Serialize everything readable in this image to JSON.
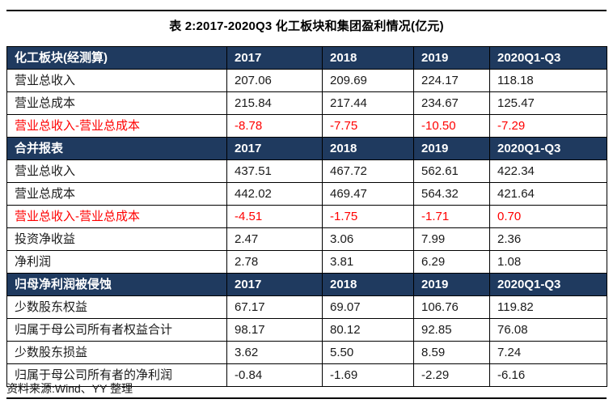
{
  "page": {
    "title": "表 2:2017-2020Q3 化工板块和集团盈利情况(亿元)",
    "source": "资料来源:Wind、YY 整理"
  },
  "colors": {
    "section_header_bg": "#1f3a5f",
    "section_header_text": "#ffffff",
    "negative_highlight": "#ff0000",
    "rule": "#000000"
  },
  "table": {
    "unit": "亿元",
    "sections": [
      {
        "header": [
          "化工板块(经测算)",
          "2017",
          "2018",
          "2019",
          "2020Q1-Q3"
        ],
        "rows": [
          {
            "label": "营业总收入",
            "values": [
              "207.06",
              "209.69",
              "224.17",
              "118.18"
            ],
            "red": false
          },
          {
            "label": "营业总成本",
            "values": [
              "215.84",
              "217.44",
              "234.67",
              "125.47"
            ],
            "red": false
          },
          {
            "label": "营业总收入-营业总成本",
            "values": [
              "-8.78",
              "-7.75",
              "-10.50",
              "-7.29"
            ],
            "red": true
          }
        ]
      },
      {
        "header": [
          "合并报表",
          "2017",
          "2018",
          "2019",
          "2020Q1-Q3"
        ],
        "rows": [
          {
            "label": "营业总收入",
            "values": [
              "437.51",
              "467.72",
              "562.61",
              "422.34"
            ],
            "red": false
          },
          {
            "label": "营业总成本",
            "values": [
              "442.02",
              "469.47",
              "564.32",
              "421.64"
            ],
            "red": false
          },
          {
            "label": "营业总收入-营业总成本",
            "values": [
              "-4.51",
              "-1.75",
              "-1.71",
              "0.70"
            ],
            "red": true
          },
          {
            "label": "投资净收益",
            "values": [
              "2.47",
              "3.06",
              "7.99",
              "2.36"
            ],
            "red": false
          },
          {
            "label": "净利润",
            "values": [
              "2.78",
              "3.81",
              "6.29",
              "1.08"
            ],
            "red": false
          }
        ]
      },
      {
        "header": [
          "归母净利润被侵蚀",
          "2017",
          "2018",
          "2019",
          "2020Q1-Q3"
        ],
        "rows": [
          {
            "label": "少数股东权益",
            "values": [
              "67.17",
              "69.07",
              "106.76",
              "119.82"
            ],
            "red": false
          },
          {
            "label": "归属于母公司所有者权益合计",
            "values": [
              "98.17",
              "80.12",
              "92.85",
              "76.08"
            ],
            "red": false
          },
          {
            "label": "少数股东损益",
            "values": [
              "3.62",
              "5.50",
              "8.59",
              "7.24"
            ],
            "red": false
          },
          {
            "label": "归属于母公司所有者的净利润",
            "values": [
              "-0.84",
              "-1.69",
              "-2.29",
              "-6.16"
            ],
            "red": false
          }
        ]
      }
    ]
  }
}
